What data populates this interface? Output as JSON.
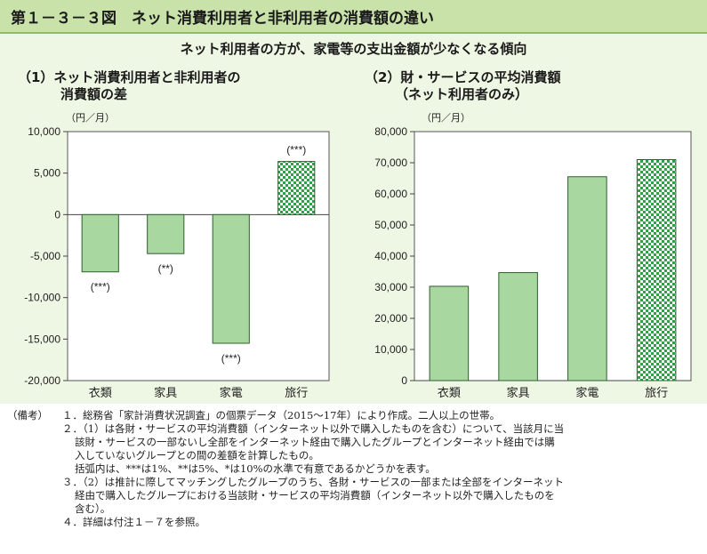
{
  "figure": {
    "title": "第１－３－３図　ネット消費利用者と非利用者の消費額の違い",
    "subtitle": "ネット利用者の方が、家電等の支出金額が少なくなる傾向"
  },
  "panels": [
    {
      "title_line1": "（1）ネット消費利用者と非利用者の",
      "title_line2": "消費額の差",
      "unit": "（円／月）"
    },
    {
      "title_line1": "（2）財・サービスの平均消費額",
      "title_line2": "（ネット利用者のみ）",
      "unit": "（円／月）"
    }
  ],
  "chart_data": [
    {
      "type": "bar",
      "categories": [
        "衣類",
        "家具",
        "家電",
        "旅行"
      ],
      "values": [
        -6900,
        -4700,
        -15500,
        6400
      ],
      "annotations": [
        "(***)",
        "(**)",
        "(***)",
        "(***)"
      ],
      "ylim": [
        -20000,
        10000
      ],
      "yticks": [
        10000,
        5000,
        0,
        -5000,
        -10000,
        -15000,
        -20000
      ],
      "ytick_labels": [
        "10,000",
        "5,000",
        "0",
        "-5,000",
        "-10,000",
        "-15,000",
        "-20,000"
      ],
      "bar_fill": [
        "solid",
        "solid",
        "solid",
        "checker"
      ],
      "bar_color": "#a8d8a0",
      "bar_stroke": "#2e5e2e",
      "checker_color": "#2ea04a"
    },
    {
      "type": "bar",
      "categories": [
        "衣類",
        "家具",
        "家電",
        "旅行"
      ],
      "values": [
        30300,
        34700,
        65500,
        71000
      ],
      "ylim": [
        0,
        80000
      ],
      "yticks": [
        80000,
        70000,
        60000,
        50000,
        40000,
        30000,
        20000,
        10000,
        0
      ],
      "ytick_labels": [
        "80,000",
        "70,000",
        "60,000",
        "50,000",
        "40,000",
        "30,000",
        "20,000",
        "10,000",
        "0"
      ],
      "bar_fill": [
        "solid",
        "solid",
        "solid",
        "checker"
      ],
      "bar_color": "#a8d8a0",
      "bar_stroke": "#2e5e2e",
      "checker_color": "#2ea04a"
    }
  ],
  "notes": {
    "label": "（備考）",
    "lines": [
      "１．総務省「家計消費状況調査」の個票データ（2015～17年）により作成。二人以上の世帯。",
      "２．（1）は各財・サービスの平均消費額（インターネット以外で購入したものを含む）について、当該月に当",
      "該財・サービスの一部ないし全部をインターネット経由で購入したグループとインターネット経由では購",
      "入していないグループとの間の差額を計算したもの。",
      "括弧内は、***は1%、**は5%、*は10%の水準で有意であるかどうかを表す。",
      "３．（2）は推計に際してマッチングしたグループのうち、各財・サービスの一部または全部をインターネット",
      "経由で購入したグループにおける当該財・サービスの平均消費額（インターネット以外で購入したものを",
      "含む）。",
      "４．詳細は付注１－７を参照。"
    ]
  }
}
